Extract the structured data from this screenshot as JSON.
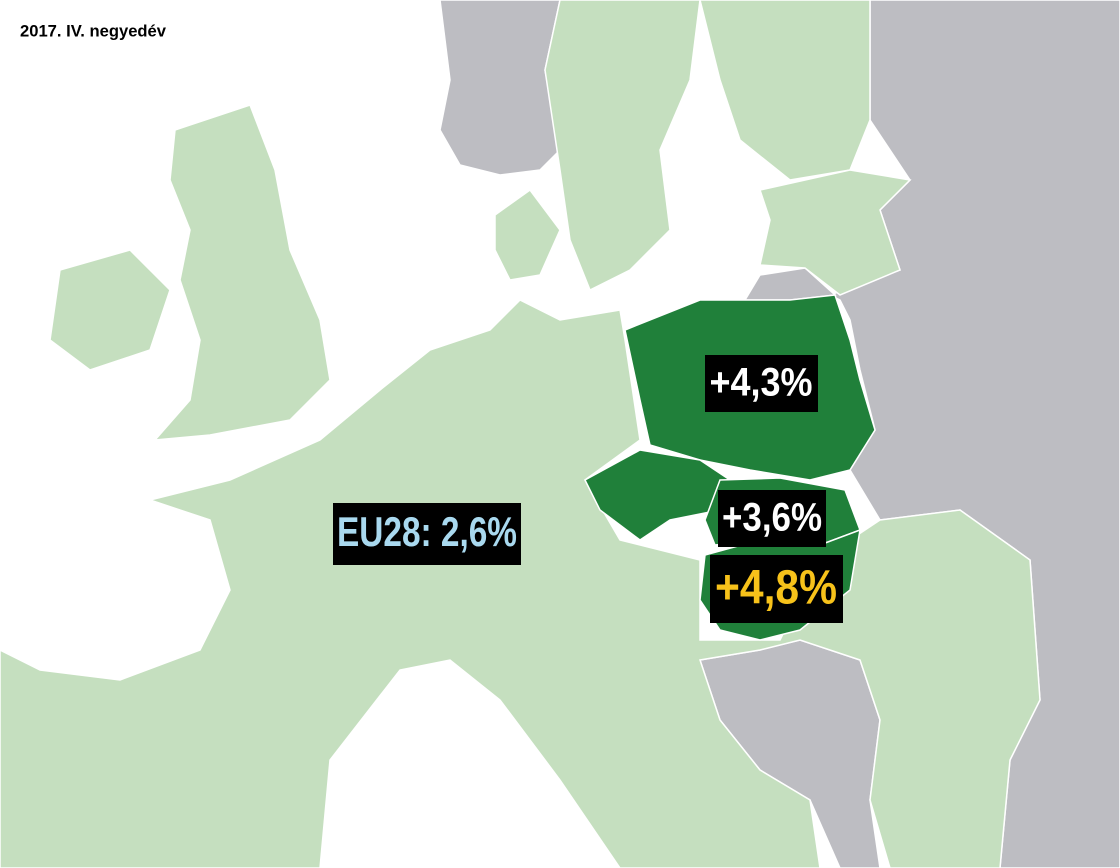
{
  "header": {
    "title": "2017. IV. negyedév"
  },
  "labels": [
    {
      "text": "+4,3%",
      "color": "#ffffff"
    },
    {
      "text": "+3,6%",
      "color": "#ffffff"
    },
    {
      "text": "+4,8%",
      "color": "#f7c21a"
    },
    {
      "text": "EU28: 2,6%",
      "color": "#a9d9ef"
    }
  ]
}
